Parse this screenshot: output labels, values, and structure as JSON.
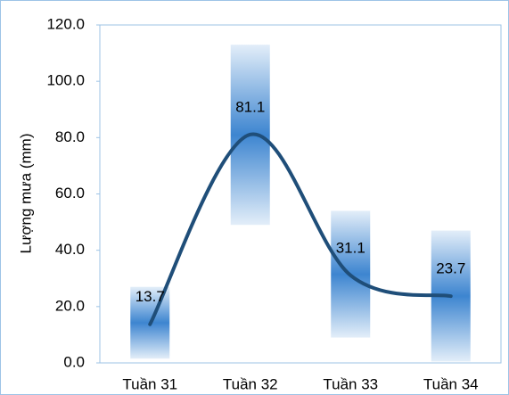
{
  "chart_data": {
    "type": "line",
    "y_label": "Lượng mưa (mm)",
    "categories": [
      "Tuần 31",
      "Tuần 32",
      "Tuần 33",
      "Tuần 34"
    ],
    "values": [
      13.7,
      81.1,
      31.1,
      23.7
    ],
    "low": [
      1.5,
      49,
      9,
      0.5
    ],
    "high": [
      27,
      113,
      54,
      47
    ],
    "color": "#1f4e79",
    "bar_color": "#3d85d0",
    "ylim": [
      0,
      120
    ],
    "yticks": [
      {
        "value": 0,
        "label": "0.0"
      },
      {
        "value": 20,
        "label": "20.0"
      },
      {
        "value": 40,
        "label": "40.0"
      },
      {
        "value": 60,
        "label": "60.0"
      },
      {
        "value": 80,
        "label": "80.0"
      },
      {
        "value": 100,
        "label": "100.0"
      },
      {
        "value": 120,
        "label": "120.0"
      }
    ],
    "smooth": true
  }
}
